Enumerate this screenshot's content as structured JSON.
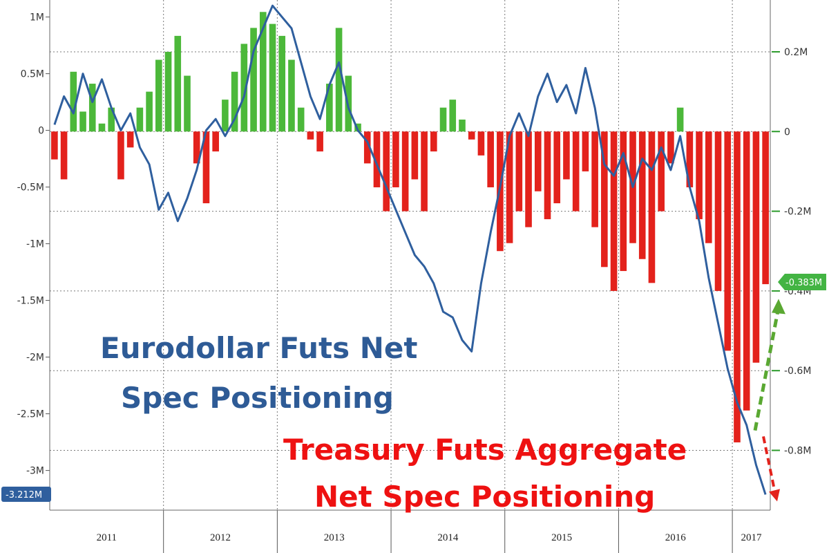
{
  "chart_data": {
    "type": "bar+line",
    "title": "",
    "x_period": [
      "2011-01",
      "2017-04"
    ],
    "years": [
      "2011",
      "2012",
      "2013",
      "2014",
      "2015",
      "2016",
      "2017"
    ],
    "left_axis": {
      "ticks": [
        1,
        0.5,
        0,
        -0.5,
        -1,
        -1.5,
        -2,
        -2.5,
        -3
      ],
      "tick_labels": [
        "1M",
        "0.5M",
        "0",
        "-0.5M",
        "-1M",
        "-1.5M",
        "-2M",
        "-2.5M",
        "-3M"
      ],
      "range": [
        -3.35,
        1.15
      ]
    },
    "right_axis": {
      "ticks": [
        0.2,
        0,
        -0.2,
        -0.4,
        -0.6,
        -0.8
      ],
      "tick_labels": [
        "0.2M",
        "0",
        "-0.2M",
        "-0.4M",
        "-0.6M",
        "-0.8M"
      ],
      "range": [
        -0.95,
        0.33
      ]
    },
    "grid": true,
    "series": [
      {
        "name": "Eurodollar Futs Net Spec Positioning",
        "axis": "left",
        "kind": "line",
        "color": "#2f5f9e",
        "points": [
          [
            "2011-01",
            0.05
          ],
          [
            "2011-02",
            0.3
          ],
          [
            "2011-03",
            0.15
          ],
          [
            "2011-04",
            0.5
          ],
          [
            "2011-05",
            0.25
          ],
          [
            "2011-06",
            0.45
          ],
          [
            "2011-07",
            0.2
          ],
          [
            "2011-08",
            0.0
          ],
          [
            "2011-09",
            0.15
          ],
          [
            "2011-10",
            -0.15
          ],
          [
            "2011-11",
            -0.3
          ],
          [
            "2011-12",
            -0.7
          ],
          [
            "2012-01",
            -0.55
          ],
          [
            "2012-02",
            -0.8
          ],
          [
            "2012-03",
            -0.6
          ],
          [
            "2012-04",
            -0.35
          ],
          [
            "2012-05",
            0.0
          ],
          [
            "2012-06",
            0.1
          ],
          [
            "2012-07",
            -0.05
          ],
          [
            "2012-08",
            0.1
          ],
          [
            "2012-09",
            0.3
          ],
          [
            "2012-10",
            0.7
          ],
          [
            "2012-11",
            0.9
          ],
          [
            "2012-12",
            1.1
          ],
          [
            "2013-01",
            1.0
          ],
          [
            "2013-02",
            0.9
          ],
          [
            "2013-03",
            0.6
          ],
          [
            "2013-04",
            0.3
          ],
          [
            "2013-05",
            0.1
          ],
          [
            "2013-06",
            0.4
          ],
          [
            "2013-07",
            0.6
          ],
          [
            "2013-08",
            0.2
          ],
          [
            "2013-09",
            0.0
          ],
          [
            "2013-10",
            -0.1
          ],
          [
            "2013-11",
            -0.3
          ],
          [
            "2013-12",
            -0.5
          ],
          [
            "2014-01",
            -0.7
          ],
          [
            "2014-02",
            -0.9
          ],
          [
            "2014-03",
            -1.1
          ],
          [
            "2014-04",
            -1.2
          ],
          [
            "2014-05",
            -1.35
          ],
          [
            "2014-06",
            -1.6
          ],
          [
            "2014-07",
            -1.65
          ],
          [
            "2014-08",
            -1.85
          ],
          [
            "2014-09",
            -1.95
          ],
          [
            "2014-10",
            -1.35
          ],
          [
            "2014-11",
            -0.9
          ],
          [
            "2014-12",
            -0.5
          ],
          [
            "2015-01",
            -0.05
          ],
          [
            "2015-02",
            0.15
          ],
          [
            "2015-03",
            -0.05
          ],
          [
            "2015-04",
            0.3
          ],
          [
            "2015-05",
            0.5
          ],
          [
            "2015-06",
            0.25
          ],
          [
            "2015-07",
            0.4
          ],
          [
            "2015-08",
            0.15
          ],
          [
            "2015-09",
            0.55
          ],
          [
            "2015-10",
            0.2
          ],
          [
            "2015-11",
            -0.3
          ],
          [
            "2015-12",
            -0.4
          ],
          [
            "2016-01",
            -0.2
          ],
          [
            "2016-02",
            -0.5
          ],
          [
            "2016-03",
            -0.25
          ],
          [
            "2016-04",
            -0.35
          ],
          [
            "2016-05",
            -0.15
          ],
          [
            "2016-06",
            -0.35
          ],
          [
            "2016-07",
            -0.05
          ],
          [
            "2016-08",
            -0.5
          ],
          [
            "2016-09",
            -0.8
          ],
          [
            "2016-10",
            -1.3
          ],
          [
            "2016-11",
            -1.7
          ],
          [
            "2016-12",
            -2.1
          ],
          [
            "2017-01",
            -2.4
          ],
          [
            "2017-02",
            -2.6
          ],
          [
            "2017-03",
            -2.95
          ],
          [
            "2017-04",
            -3.212
          ]
        ]
      },
      {
        "name": "Treasury Futs Aggregate Net Spec Positioning",
        "axis": "right",
        "kind": "bar",
        "positive_color": "#4cb83a",
        "negative_color": "#e3221c",
        "points": [
          [
            "2011-01",
            -0.07
          ],
          [
            "2011-02",
            -0.12
          ],
          [
            "2011-03",
            0.15
          ],
          [
            "2011-04",
            0.05
          ],
          [
            "2011-05",
            0.12
          ],
          [
            "2011-06",
            0.02
          ],
          [
            "2011-07",
            0.06
          ],
          [
            "2011-08",
            -0.12
          ],
          [
            "2011-09",
            -0.04
          ],
          [
            "2011-10",
            0.06
          ],
          [
            "2011-11",
            0.1
          ],
          [
            "2011-12",
            0.18
          ],
          [
            "2012-01",
            0.2
          ],
          [
            "2012-02",
            0.24
          ],
          [
            "2012-03",
            0.14
          ],
          [
            "2012-04",
            -0.08
          ],
          [
            "2012-05",
            -0.18
          ],
          [
            "2012-06",
            -0.05
          ],
          [
            "2012-07",
            0.08
          ],
          [
            "2012-08",
            0.15
          ],
          [
            "2012-09",
            0.22
          ],
          [
            "2012-10",
            0.26
          ],
          [
            "2012-11",
            0.3
          ],
          [
            "2012-12",
            0.27
          ],
          [
            "2013-01",
            0.24
          ],
          [
            "2013-02",
            0.18
          ],
          [
            "2013-03",
            0.06
          ],
          [
            "2013-04",
            -0.02
          ],
          [
            "2013-05",
            -0.05
          ],
          [
            "2013-06",
            0.12
          ],
          [
            "2013-07",
            0.26
          ],
          [
            "2013-08",
            0.14
          ],
          [
            "2013-09",
            0.02
          ],
          [
            "2013-10",
            -0.08
          ],
          [
            "2013-11",
            -0.14
          ],
          [
            "2013-12",
            -0.2
          ],
          [
            "2014-01",
            -0.14
          ],
          [
            "2014-02",
            -0.2
          ],
          [
            "2014-03",
            -0.12
          ],
          [
            "2014-04",
            -0.2
          ],
          [
            "2014-05",
            -0.05
          ],
          [
            "2014-06",
            0.06
          ],
          [
            "2014-07",
            0.08
          ],
          [
            "2014-08",
            0.03
          ],
          [
            "2014-09",
            -0.02
          ],
          [
            "2014-10",
            -0.06
          ],
          [
            "2014-11",
            -0.14
          ],
          [
            "2014-12",
            -0.3
          ],
          [
            "2015-01",
            -0.28
          ],
          [
            "2015-02",
            -0.2
          ],
          [
            "2015-03",
            -0.24
          ],
          [
            "2015-04",
            -0.15
          ],
          [
            "2015-05",
            -0.22
          ],
          [
            "2015-06",
            -0.18
          ],
          [
            "2015-07",
            -0.12
          ],
          [
            "2015-08",
            -0.2
          ],
          [
            "2015-09",
            -0.1
          ],
          [
            "2015-10",
            -0.24
          ],
          [
            "2015-11",
            -0.34
          ],
          [
            "2015-12",
            -0.4
          ],
          [
            "2016-01",
            -0.35
          ],
          [
            "2016-02",
            -0.28
          ],
          [
            "2016-03",
            -0.32
          ],
          [
            "2016-04",
            -0.38
          ],
          [
            "2016-05",
            -0.2
          ],
          [
            "2016-06",
            -0.08
          ],
          [
            "2016-07",
            0.06
          ],
          [
            "2016-08",
            -0.14
          ],
          [
            "2016-09",
            -0.22
          ],
          [
            "2016-10",
            -0.28
          ],
          [
            "2016-11",
            -0.4
          ],
          [
            "2016-12",
            -0.55
          ],
          [
            "2017-01",
            -0.78
          ],
          [
            "2017-02",
            -0.7
          ],
          [
            "2017-03",
            -0.58
          ],
          [
            "2017-04",
            -0.383
          ]
        ]
      }
    ],
    "last_value_labels": {
      "left": "-3.212M",
      "right": "-0.383M"
    },
    "annotations": [
      {
        "lines": [
          "Eurodollar Futs Net",
          "Spec Positioning"
        ],
        "color": "#2e5b96"
      },
      {
        "lines": [
          "Treasury Futs Aggregate",
          "Net Spec Positioning"
        ],
        "color": "#ee1111"
      }
    ],
    "arrows": [
      {
        "direction": "up",
        "color": "#5aa832",
        "series": "Treasury Futs Aggregate Net Spec Positioning"
      },
      {
        "direction": "down",
        "color": "#e3221c",
        "series": "Eurodollar Futs Net Spec Positioning"
      }
    ]
  }
}
